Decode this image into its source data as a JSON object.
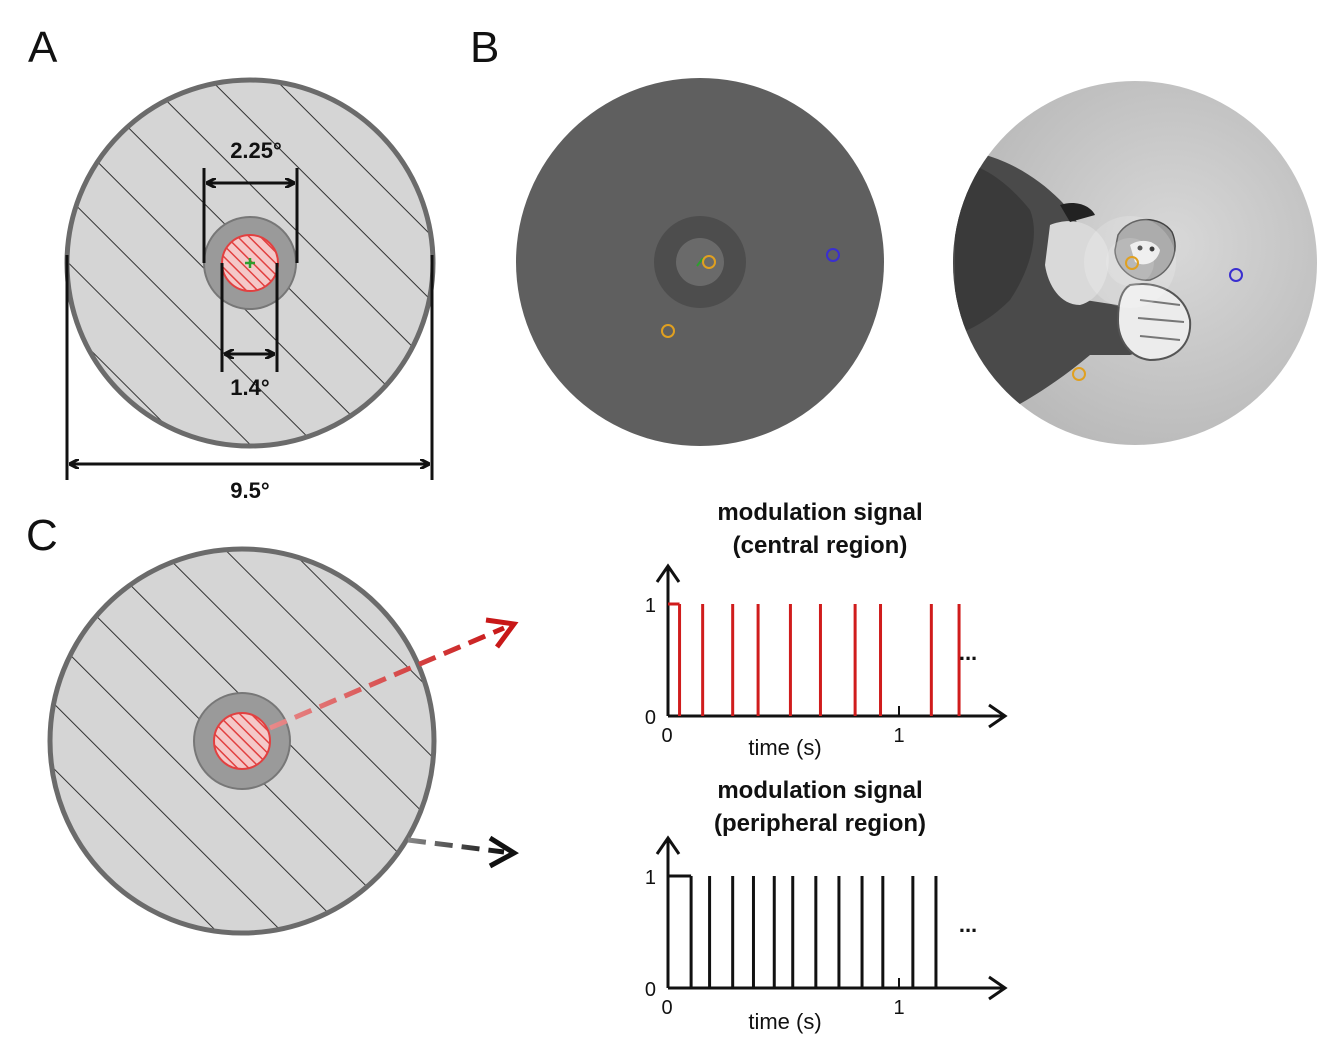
{
  "panels": {
    "a": "A",
    "b": "B",
    "c": "C"
  },
  "panel_a": {
    "dim_outer": "2.25°",
    "dim_inner": "1.4°",
    "dim_full": "9.5°"
  },
  "colors": {
    "ring_dark": "#6b6b6b",
    "disc_light": "#d5d5d5",
    "center_ring": "#9a9a9a",
    "red": "#d01c1c",
    "fixation": "#2e9e2e",
    "orange_marker": "#e0a020",
    "blue_marker": "#3a2fd0",
    "dark_gray_stim": "#5f5f5f"
  },
  "chart_data": [
    {
      "type": "line",
      "title": "modulation signal\n(central region)",
      "title_lines": [
        "modulation signal",
        "(central region)"
      ],
      "xlabel": "time (s)",
      "ylabel": "",
      "xlim": [
        0,
        1.45
      ],
      "ylim": [
        0,
        1.25
      ],
      "xticks": [
        "0",
        "1"
      ],
      "yticks": [
        "0",
        "1"
      ],
      "ellipsis": "...",
      "color": "#d01c1c",
      "pulses_x": [
        0.05,
        0.15,
        0.28,
        0.39,
        0.53,
        0.66,
        0.81,
        0.92,
        1.14,
        1.26
      ]
    },
    {
      "type": "line",
      "title": "modulation signal\n(peripheral region)",
      "title_lines": [
        "modulation signal",
        "(peripheral region)"
      ],
      "xlabel": "time (s)",
      "ylabel": "",
      "xlim": [
        0,
        1.45
      ],
      "ylim": [
        0,
        1.25
      ],
      "xticks": [
        "0",
        "1"
      ],
      "yticks": [
        "0",
        "1"
      ],
      "ellipsis": "...",
      "color": "#111111",
      "pulses_x": [
        0.1,
        0.18,
        0.28,
        0.37,
        0.46,
        0.54,
        0.64,
        0.74,
        0.84,
        0.93,
        1.06,
        1.16
      ]
    }
  ]
}
